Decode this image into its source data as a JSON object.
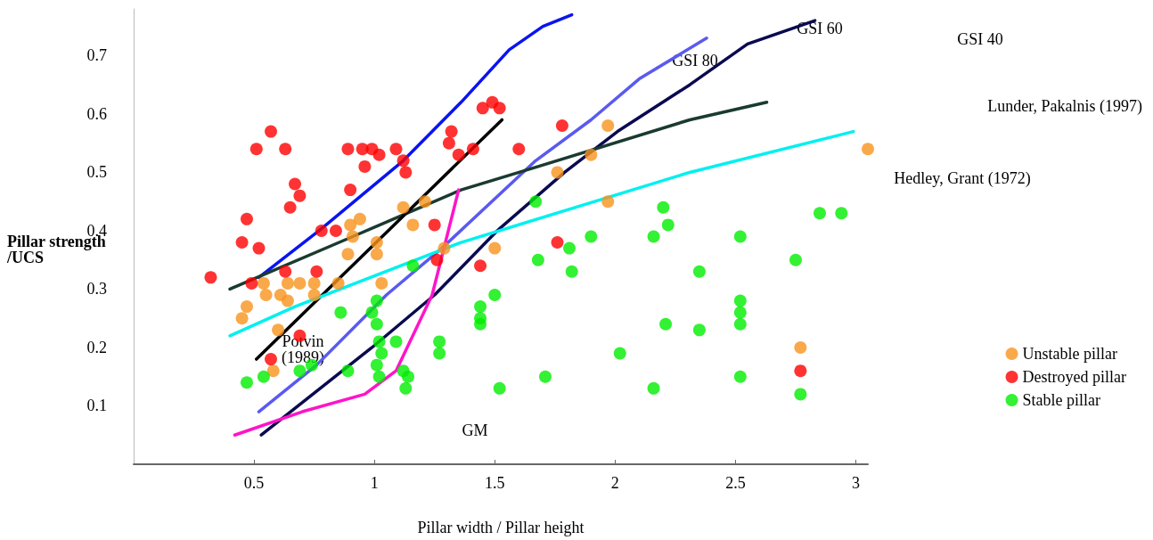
{
  "chart_data": {
    "type": "scatter",
    "xlabel": "Pillar width / Pillar height",
    "ylabel": "Pillar strength\n/UCS",
    "xlim": [
      0,
      3.05
    ],
    "ylim": [
      0,
      0.78
    ],
    "xticks": [
      0.5,
      1,
      1.5,
      2,
      2.5,
      3
    ],
    "yticks": [
      0.1,
      0.2,
      0.3,
      0.4,
      0.5,
      0.6,
      0.7
    ],
    "grid": false,
    "legend": "right",
    "marker": "circle",
    "series": [
      {
        "name": "Unstable pillar",
        "color": "#f7941d",
        "x": [
          0.54,
          0.64,
          0.69,
          0.75,
          0.85,
          1.03,
          0.55,
          0.61,
          0.64,
          0.75,
          0.47,
          0.45,
          0.6,
          0.58,
          0.9,
          0.94,
          0.91,
          1.12,
          1.21,
          1.16,
          1.01,
          0.89,
          1.01,
          1.29,
          1.5,
          1.97,
          1.9,
          1.76,
          1.97,
          3.05,
          2.77
        ],
        "values": [
          0.31,
          0.31,
          0.31,
          0.31,
          0.31,
          0.31,
          0.29,
          0.29,
          0.28,
          0.29,
          0.27,
          0.25,
          0.23,
          0.16,
          0.41,
          0.42,
          0.39,
          0.44,
          0.45,
          0.41,
          0.38,
          0.36,
          0.36,
          0.37,
          0.37,
          0.58,
          0.53,
          0.5,
          0.45,
          0.54,
          0.2
        ]
      },
      {
        "name": "Destroyed pillar",
        "color": "#ff0000",
        "x": [
          0.32,
          0.45,
          0.47,
          0.51,
          0.57,
          0.63,
          0.52,
          0.49,
          0.63,
          0.76,
          0.67,
          0.69,
          0.65,
          0.78,
          0.84,
          0.89,
          0.95,
          0.99,
          1.09,
          0.96,
          1.02,
          1.12,
          1.13,
          0.9,
          1.25,
          1.32,
          1.31,
          1.35,
          1.41,
          1.45,
          1.49,
          1.52,
          1.6,
          1.78,
          1.76,
          1.26,
          1.44,
          0.69,
          0.57,
          2.77
        ],
        "values": [
          0.32,
          0.38,
          0.42,
          0.54,
          0.57,
          0.54,
          0.37,
          0.31,
          0.33,
          0.33,
          0.48,
          0.46,
          0.44,
          0.4,
          0.4,
          0.54,
          0.54,
          0.54,
          0.54,
          0.51,
          0.53,
          0.52,
          0.5,
          0.47,
          0.41,
          0.57,
          0.55,
          0.53,
          0.54,
          0.61,
          0.62,
          0.61,
          0.54,
          0.58,
          0.38,
          0.35,
          0.34,
          0.22,
          0.18,
          0.16
        ]
      },
      {
        "name": "Stable pillar",
        "color": "#00ee00",
        "x": [
          0.86,
          1.01,
          0.99,
          1.01,
          1.09,
          1.02,
          1.03,
          1.01,
          1.02,
          1.12,
          1.14,
          1.13,
          0.89,
          0.74,
          0.69,
          0.54,
          0.47,
          1.27,
          1.27,
          1.44,
          1.44,
          1.44,
          1.5,
          1.52,
          1.71,
          2.02,
          1.67,
          2.2,
          2.22,
          1.9,
          2.16,
          1.81,
          1.68,
          1.82,
          2.52,
          2.85,
          2.94,
          2.75,
          2.35,
          2.52,
          2.52,
          2.52,
          2.21,
          2.35,
          2.77,
          2.52,
          2.16,
          1.16
        ],
        "values": [
          0.26,
          0.28,
          0.26,
          0.24,
          0.21,
          0.21,
          0.19,
          0.17,
          0.15,
          0.16,
          0.15,
          0.13,
          0.16,
          0.17,
          0.16,
          0.15,
          0.14,
          0.21,
          0.19,
          0.27,
          0.25,
          0.24,
          0.29,
          0.13,
          0.15,
          0.19,
          0.45,
          0.44,
          0.41,
          0.39,
          0.39,
          0.37,
          0.35,
          0.33,
          0.39,
          0.43,
          0.43,
          0.35,
          0.33,
          0.28,
          0.26,
          0.24,
          0.24,
          0.23,
          0.12,
          0.15,
          0.13,
          0.34
        ]
      },
      {
        "type": "line",
        "color": "#0a14f0",
        "marker": "none",
        "x": [
          0.52,
          0.77,
          1.12,
          1.36,
          1.56,
          1.7,
          1.82
        ],
        "values": [
          0.32,
          0.4,
          0.52,
          0.62,
          0.71,
          0.75,
          0.77
        ]
      },
      {
        "type": "line",
        "color": "#5a5af0",
        "marker": "none",
        "x": [
          0.52,
          0.76,
          1.05,
          1.28,
          1.67,
          1.9,
          2.1,
          2.38
        ],
        "values": [
          0.09,
          0.17,
          0.29,
          0.37,
          0.52,
          0.59,
          0.66,
          0.73
        ]
      },
      {
        "type": "line",
        "color": "#0a0a50",
        "marker": "none",
        "x": [
          0.53,
          0.99,
          1.25,
          1.51,
          1.79,
          2.01,
          2.31,
          2.55,
          2.83
        ],
        "values": [
          0.05,
          0.2,
          0.29,
          0.4,
          0.5,
          0.57,
          0.65,
          0.72,
          0.76
        ]
      },
      {
        "type": "line",
        "color": "#1a3a30",
        "marker": "none",
        "x": [
          0.4,
          0.91,
          1.36,
          1.68,
          2.31,
          2.63
        ],
        "values": [
          0.3,
          0.39,
          0.47,
          0.51,
          0.59,
          0.62
        ]
      },
      {
        "type": "line",
        "color": "#000000",
        "marker": "none",
        "x": [
          0.51,
          1.53
        ],
        "values": [
          0.18,
          0.59
        ]
      },
      {
        "type": "line",
        "color": "#00f0f0",
        "marker": "none",
        "x": [
          0.4,
          0.67,
          1.36,
          2.31,
          2.99
        ],
        "values": [
          0.22,
          0.27,
          0.38,
          0.5,
          0.57
        ]
      },
      {
        "type": "line",
        "color": "#ff14c8",
        "marker": "none",
        "x": [
          0.42,
          0.7,
          0.96,
          1.09,
          1.24,
          1.35
        ],
        "values": [
          0.05,
          0.09,
          0.12,
          0.16,
          0.29,
          0.47
        ]
      }
    ],
    "annotations": [
      "GSI 80",
      "GSI 60",
      "GSI 40",
      "Lunder, Pakalnis (1997)",
      "Hedley, Grant (1972)",
      "Potvin\n(1989)",
      "GM"
    ]
  }
}
